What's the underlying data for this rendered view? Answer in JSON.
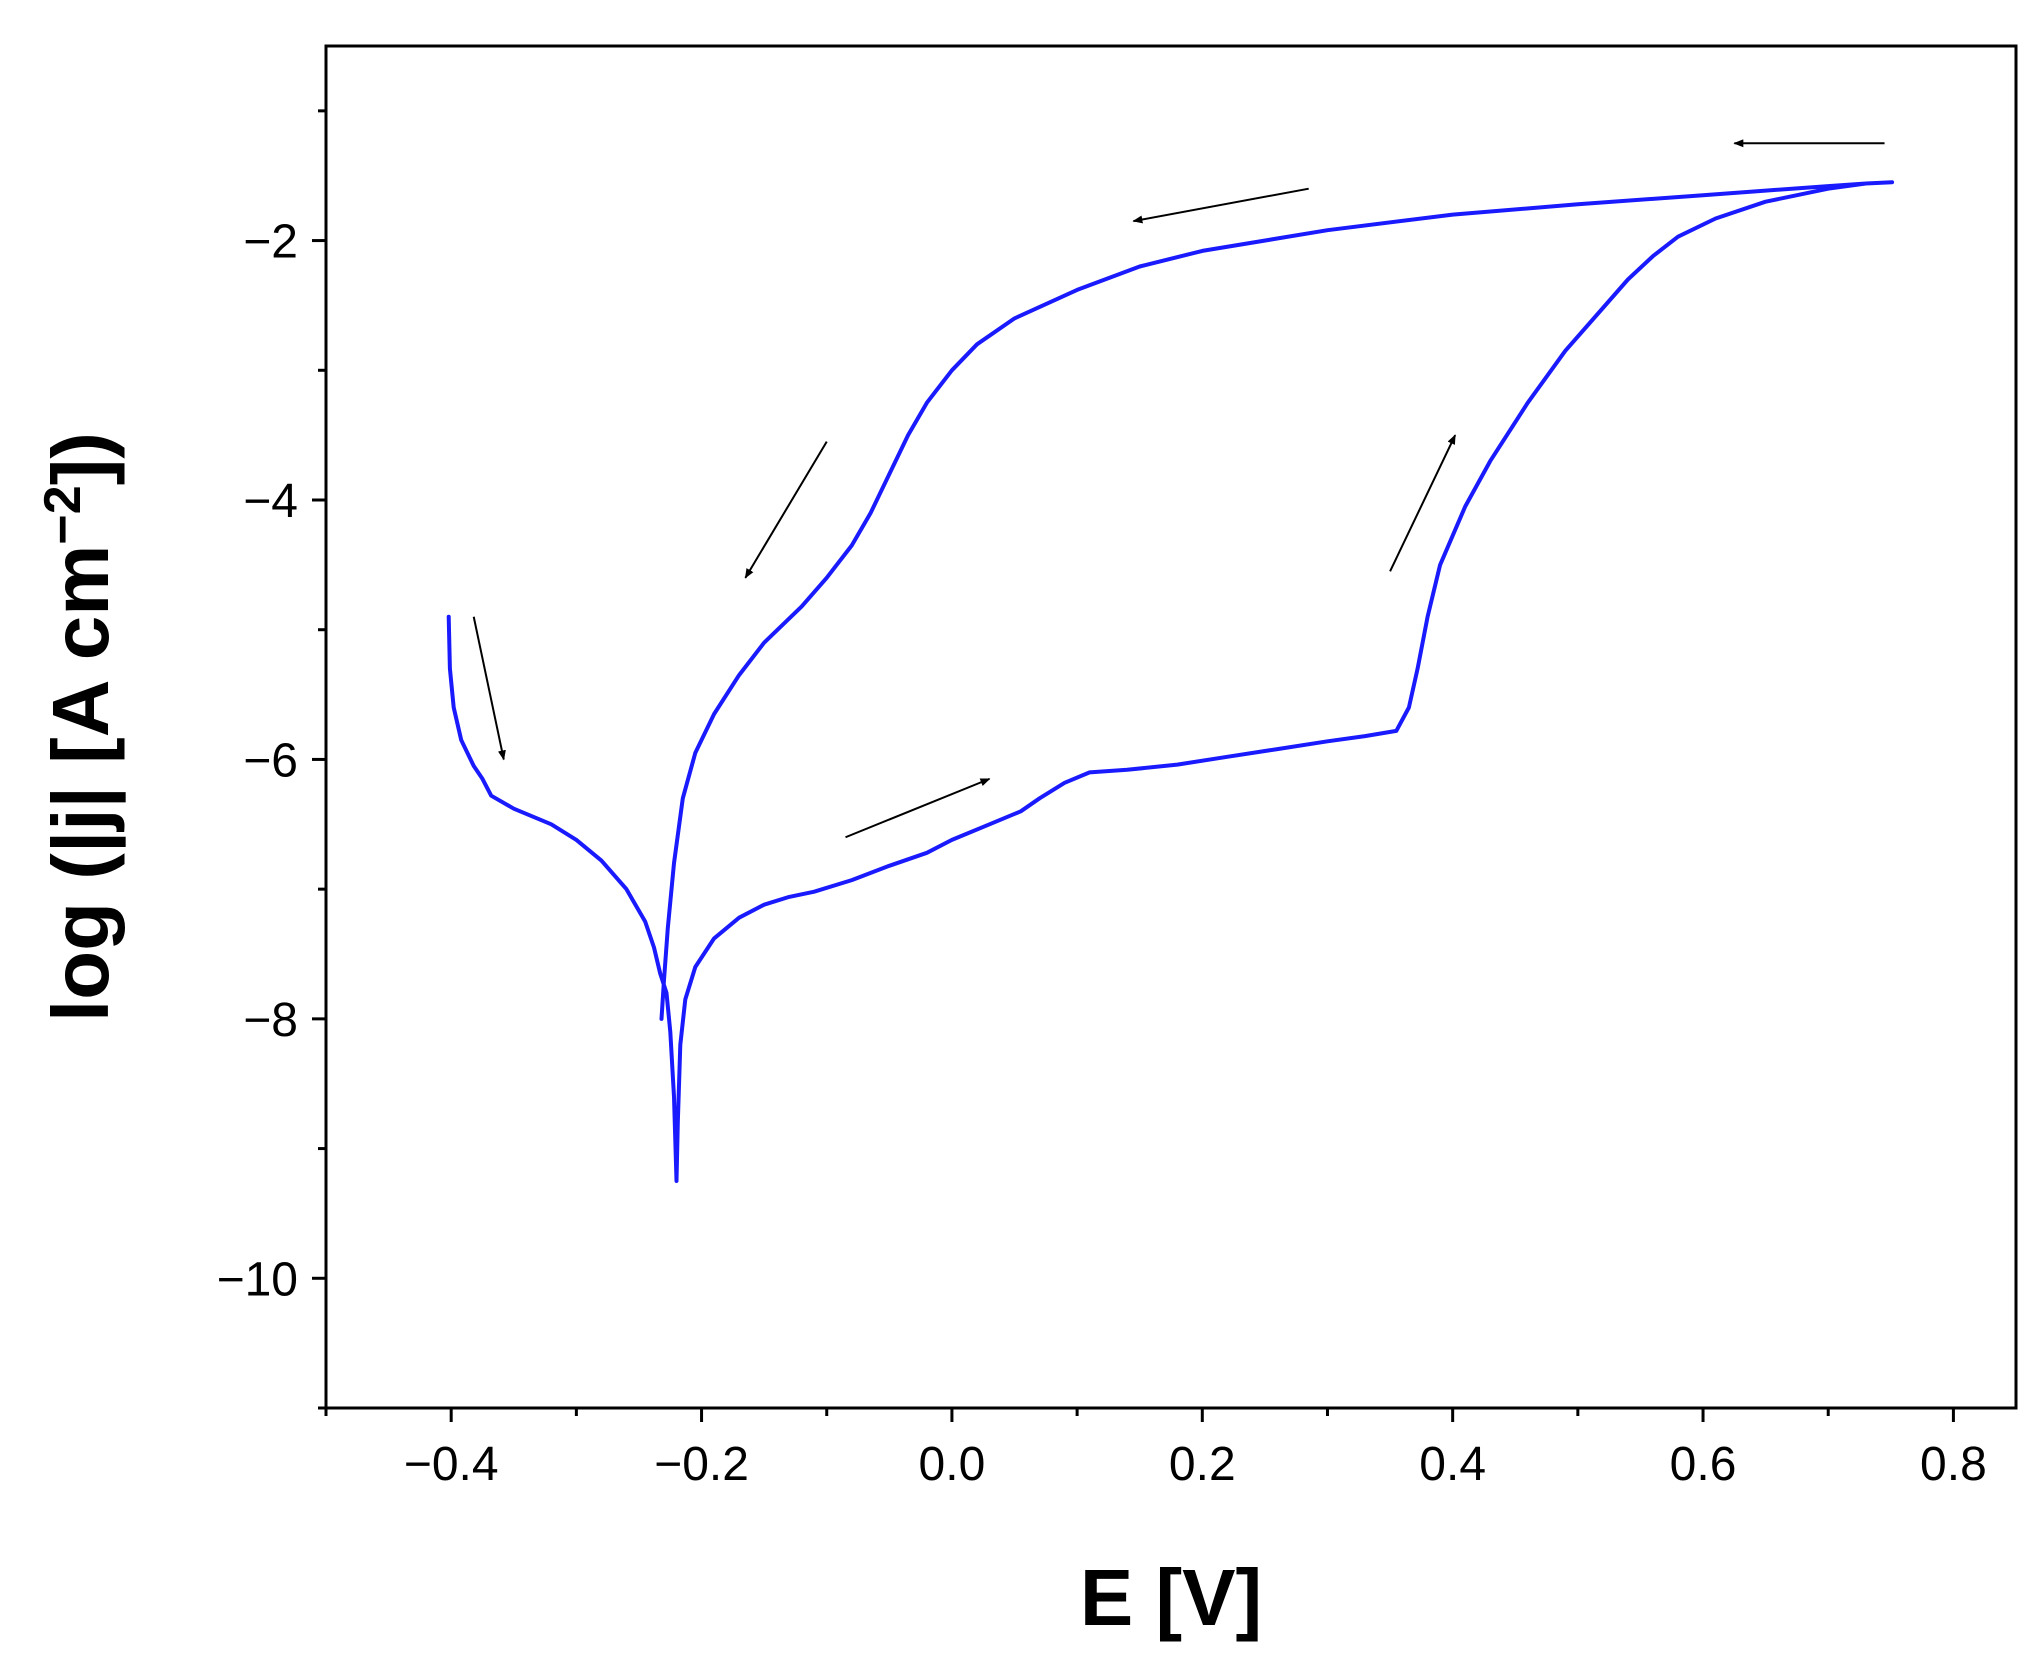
{
  "chart_data": {
    "type": "line",
    "title": "",
    "xlabel": "E [V]",
    "ylabel": {
      "main": "log (|j| [A cm",
      "sup": "−2",
      "end": "])"
    },
    "xlim": [
      -0.5,
      0.85
    ],
    "ylim": [
      -11,
      -0.5
    ],
    "xticks": [
      {
        "value": -0.4,
        "label": "−0.4"
      },
      {
        "value": -0.2,
        "label": "−0.2"
      },
      {
        "value": 0.0,
        "label": "0.0"
      },
      {
        "value": 0.2,
        "label": "0.2"
      },
      {
        "value": 0.4,
        "label": "0.4"
      },
      {
        "value": 0.6,
        "label": "0.6"
      },
      {
        "value": 0.8,
        "label": "0.8"
      }
    ],
    "yticks": [
      {
        "value": -2,
        "label": "−2"
      },
      {
        "value": -4,
        "label": "−4"
      },
      {
        "value": -6,
        "label": "−6"
      },
      {
        "value": -8,
        "label": "−8"
      },
      {
        "value": -10,
        "label": "−10"
      }
    ],
    "grid": false,
    "legend": "none",
    "series": [
      {
        "color": "#1a1aff",
        "points": [
          [
            -0.402,
            -4.9
          ],
          [
            -0.401,
            -5.3
          ],
          [
            -0.398,
            -5.6
          ],
          [
            -0.392,
            -5.85
          ],
          [
            -0.382,
            -6.05
          ],
          [
            -0.375,
            -6.15
          ],
          [
            -0.368,
            -6.28
          ],
          [
            -0.35,
            -6.38
          ],
          [
            -0.32,
            -6.5
          ],
          [
            -0.3,
            -6.62
          ],
          [
            -0.28,
            -6.78
          ],
          [
            -0.26,
            -7.0
          ],
          [
            -0.245,
            -7.25
          ],
          [
            -0.238,
            -7.45
          ],
          [
            -0.233,
            -7.65
          ],
          [
            -0.228,
            -7.8
          ],
          [
            -0.225,
            -8.1
          ],
          [
            -0.222,
            -8.6
          ],
          [
            -0.22,
            -9.25
          ],
          [
            -0.219,
            -8.8
          ],
          [
            -0.217,
            -8.2
          ],
          [
            -0.213,
            -7.85
          ],
          [
            -0.205,
            -7.6
          ],
          [
            -0.19,
            -7.38
          ],
          [
            -0.17,
            -7.22
          ],
          [
            -0.15,
            -7.12
          ],
          [
            -0.13,
            -7.06
          ],
          [
            -0.11,
            -7.02
          ],
          [
            -0.08,
            -6.93
          ],
          [
            -0.05,
            -6.82
          ],
          [
            -0.02,
            -6.72
          ],
          [
            0.0,
            -6.62
          ],
          [
            0.03,
            -6.5
          ],
          [
            0.055,
            -6.4
          ],
          [
            0.07,
            -6.3
          ],
          [
            0.09,
            -6.18
          ],
          [
            0.11,
            -6.1
          ],
          [
            0.14,
            -6.08
          ],
          [
            0.18,
            -6.04
          ],
          [
            0.22,
            -5.98
          ],
          [
            0.26,
            -5.92
          ],
          [
            0.3,
            -5.86
          ],
          [
            0.33,
            -5.82
          ],
          [
            0.355,
            -5.78
          ],
          [
            0.365,
            -5.6
          ],
          [
            0.372,
            -5.3
          ],
          [
            0.38,
            -4.9
          ],
          [
            0.39,
            -4.5
          ],
          [
            0.41,
            -4.05
          ],
          [
            0.43,
            -3.7
          ],
          [
            0.46,
            -3.25
          ],
          [
            0.49,
            -2.85
          ],
          [
            0.52,
            -2.52
          ],
          [
            0.54,
            -2.3
          ],
          [
            0.56,
            -2.12
          ],
          [
            0.58,
            -1.97
          ],
          [
            0.61,
            -1.83
          ],
          [
            0.65,
            -1.7
          ],
          [
            0.7,
            -1.6
          ],
          [
            0.73,
            -1.56
          ],
          [
            0.751,
            -1.55
          ],
          [
            0.73,
            -1.56
          ],
          [
            0.7,
            -1.58
          ],
          [
            0.6,
            -1.65
          ],
          [
            0.5,
            -1.72
          ],
          [
            0.4,
            -1.8
          ],
          [
            0.3,
            -1.92
          ],
          [
            0.2,
            -2.08
          ],
          [
            0.15,
            -2.2
          ],
          [
            0.1,
            -2.38
          ],
          [
            0.05,
            -2.6
          ],
          [
            0.02,
            -2.8
          ],
          [
            0.0,
            -3.0
          ],
          [
            -0.02,
            -3.25
          ],
          [
            -0.035,
            -3.5
          ],
          [
            -0.05,
            -3.8
          ],
          [
            -0.065,
            -4.1
          ],
          [
            -0.08,
            -4.35
          ],
          [
            -0.1,
            -4.6
          ],
          [
            -0.12,
            -4.82
          ],
          [
            -0.15,
            -5.1
          ],
          [
            -0.17,
            -5.35
          ],
          [
            -0.19,
            -5.65
          ],
          [
            -0.205,
            -5.95
          ],
          [
            -0.215,
            -6.3
          ],
          [
            -0.222,
            -6.8
          ],
          [
            -0.227,
            -7.3
          ],
          [
            -0.23,
            -7.7
          ],
          [
            -0.232,
            -8.0
          ]
        ]
      }
    ],
    "annotations": [
      {
        "type": "arrow",
        "from": [
          -0.382,
          -4.9
        ],
        "to": [
          -0.358,
          -6.0
        ]
      },
      {
        "type": "arrow",
        "from": [
          -0.1,
          -3.55
        ],
        "to": [
          -0.165,
          -4.6
        ]
      },
      {
        "type": "arrow",
        "from": [
          -0.085,
          -6.6
        ],
        "to": [
          0.03,
          -6.15
        ]
      },
      {
        "type": "arrow",
        "from": [
          0.35,
          -4.55
        ],
        "to": [
          0.402,
          -3.5
        ]
      },
      {
        "type": "arrow",
        "from": [
          0.285,
          -1.6
        ],
        "to": [
          0.145,
          -1.85
        ]
      },
      {
        "type": "arrow",
        "from": [
          0.745,
          -1.25
        ],
        "to": [
          0.625,
          -1.25
        ]
      }
    ]
  }
}
